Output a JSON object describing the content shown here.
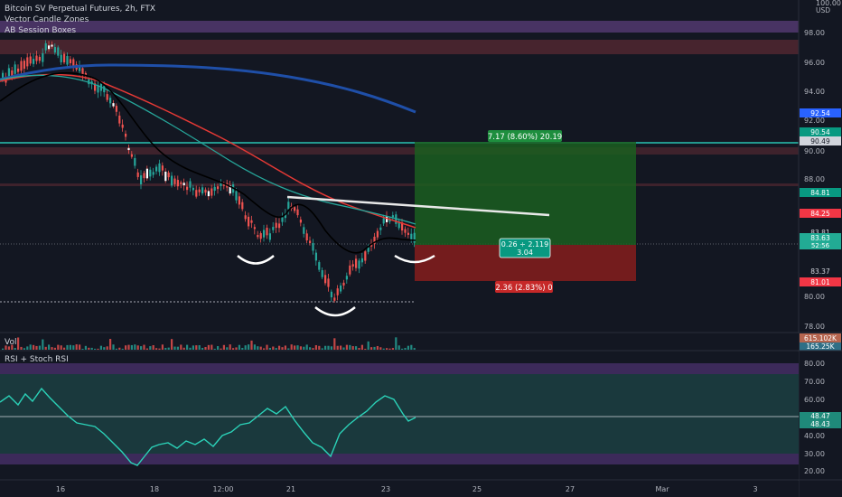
{
  "header": {
    "symbol": "Bitcoin SV Perpetual Futures, 2h, FTX",
    "indicator_1": "Vector Candle Zones",
    "indicator_2": "AB Session Boxes"
  },
  "currency": "USD",
  "price_axis": {
    "ticks": [
      "100.00",
      "98.00",
      "96.00",
      "94.00",
      "92.00",
      "90.00",
      "88.00",
      "80.00",
      "78.00"
    ],
    "badges": [
      {
        "name": "price-badge-ema200",
        "text": "92.54",
        "bg": "#2962ff",
        "fg": "#ffffff"
      },
      {
        "name": "price-badge-target",
        "text": "90.54",
        "bg": "#089981",
        "fg": "#ffffff"
      },
      {
        "name": "price-badge-zone",
        "text": "90.49",
        "bg": "#d1d4dc",
        "fg": "#131722"
      },
      {
        "name": "price-badge-ema50",
        "text": "84.81",
        "bg": "#089981",
        "fg": "#ffffff"
      },
      {
        "name": "price-badge-ema20",
        "text": "84.25",
        "bg": "#f23645",
        "fg": "#ffffff"
      },
      {
        "name": "price-badge-high",
        "text": "83.81",
        "bg": "#131722",
        "fg": "#d1d4dc"
      },
      {
        "name": "price-badge-last",
        "text": "83.63",
        "text2": "52:56",
        "bg": "#22ab94",
        "fg": "#ffffff"
      },
      {
        "name": "price-badge-low",
        "text": "83.37",
        "bg": "#131722",
        "fg": "#d1d4dc"
      },
      {
        "name": "price-badge-stop",
        "text": "81.01",
        "bg": "#f23645",
        "fg": "#ffffff"
      }
    ]
  },
  "position": {
    "target_label": "7.17 (8.60%) 20.19",
    "entry_label_1": "0.26 ÷ 2.119",
    "entry_label_2": "3.04",
    "stop_label": "2.36 (2.83%) 0"
  },
  "volume": {
    "label": "Vol",
    "value_1": "615.102K",
    "value_2": "165.25K"
  },
  "rsi": {
    "label": "RSI + Stoch RSI",
    "ticks": [
      "80.00",
      "70.00",
      "60.00",
      "50.00",
      "40.00",
      "30.00",
      "20.00"
    ],
    "badge_1": "48.47",
    "badge_2": "48.43"
  },
  "time_axis": [
    "16",
    "18",
    "12:00",
    "21",
    "23",
    "25",
    "27",
    "Mar",
    "3"
  ],
  "colors": {
    "background": "#131722",
    "up": "#26a69a",
    "down": "#ef5350",
    "ema200": "#1f4fa8",
    "ema50": "#26a69a",
    "ema20": "#e53935",
    "ema9": "#000000",
    "rsi_line": "#2bd2b8",
    "target_zone": "#1b5e20",
    "stop_zone": "#7f1d1d"
  }
}
